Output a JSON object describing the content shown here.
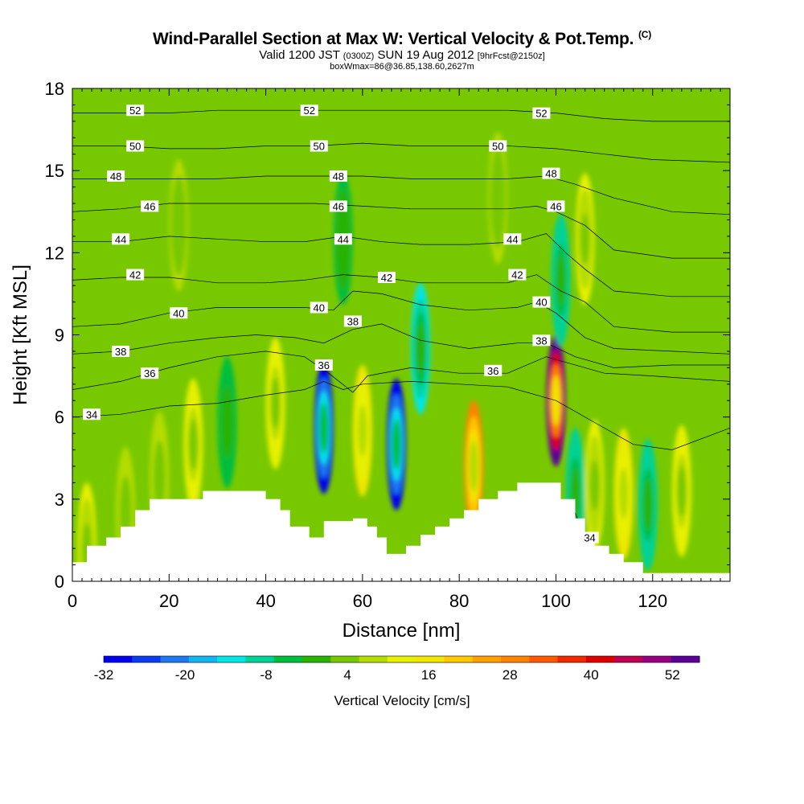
{
  "header": {
    "title": "Wind-Parallel Section at Max W: Vertical Velocity & Pot.Temp.",
    "title_mark": "(C)",
    "valid_prefix": "Valid 1200 JST",
    "valid_utc": "(0300Z)",
    "valid_date": "SUN 19 Aug 2012",
    "forecast": "[9hrFcst@2150z]",
    "box_info": "boxWmax=86@36.85,138.60,2627m"
  },
  "chart_data": {
    "type": "heatmap",
    "xlabel": "Distance [nm]",
    "ylabel": "Height [Kft MSL]",
    "xlim": [
      0,
      136
    ],
    "ylim": [
      0,
      18
    ],
    "x_ticks": [
      0,
      20,
      40,
      60,
      80,
      100,
      120
    ],
    "y_ticks": [
      0,
      3,
      6,
      9,
      12,
      15,
      18
    ],
    "colorbar": {
      "label": "Vertical Velocity [cm/s]",
      "tick_labels": [
        -32,
        -20,
        -8,
        4,
        16,
        28,
        40,
        52
      ],
      "colors": [
        "#0000f0",
        "#0a3cf0",
        "#1e78f0",
        "#14b4f0",
        "#00e6e6",
        "#00d296",
        "#00be3c",
        "#28b400",
        "#78c800",
        "#b4dc00",
        "#e6f000",
        "#f0e600",
        "#ffc800",
        "#ffa000",
        "#ff8200",
        "#ff5a00",
        "#f02800",
        "#dc0000",
        "#be0050",
        "#960082",
        "#5a0096"
      ]
    },
    "background_velocity": 2,
    "velocity_cells": [
      {
        "x": 3,
        "y": 1.2,
        "v": 10
      },
      {
        "x": 11,
        "y": 2.5,
        "v": 8
      },
      {
        "x": 18,
        "y": 3.8,
        "v": 7
      },
      {
        "x": 25,
        "y": 5.0,
        "v": 14
      },
      {
        "x": 32,
        "y": 5.8,
        "v": -6
      },
      {
        "x": 42,
        "y": 6.5,
        "v": 14
      },
      {
        "x": 52,
        "y": 5.6,
        "v": -30
      },
      {
        "x": 60,
        "y": 5.5,
        "v": 18
      },
      {
        "x": 67,
        "y": 5.0,
        "v": -28
      },
      {
        "x": 72,
        "y": 8.5,
        "v": -12
      },
      {
        "x": 83,
        "y": 4.2,
        "v": 28
      },
      {
        "x": 100,
        "y": 6.6,
        "v": 54
      },
      {
        "x": 104,
        "y": 3.2,
        "v": -10
      },
      {
        "x": 108,
        "y": 3.5,
        "v": 12
      },
      {
        "x": 114,
        "y": 3.2,
        "v": 18
      },
      {
        "x": 119,
        "y": 2.8,
        "v": -10
      },
      {
        "x": 126,
        "y": 3.3,
        "v": 14
      },
      {
        "x": 101,
        "y": 11.0,
        "v": -10
      },
      {
        "x": 106,
        "y": 12.5,
        "v": 12
      },
      {
        "x": 56,
        "y": 12.5,
        "v": -4
      },
      {
        "x": 22,
        "y": 13.0,
        "v": 6
      },
      {
        "x": 88,
        "y": 14.0,
        "v": 6
      }
    ],
    "terrain": [
      [
        0,
        0.7
      ],
      [
        3,
        1.3
      ],
      [
        7,
        1.6
      ],
      [
        10,
        2.0
      ],
      [
        13,
        2.6
      ],
      [
        16,
        3.0
      ],
      [
        26,
        3.0
      ],
      [
        27,
        3.3
      ],
      [
        38,
        3.3
      ],
      [
        40,
        3.0
      ],
      [
        43,
        2.6
      ],
      [
        45,
        2.0
      ],
      [
        49,
        1.6
      ],
      [
        52,
        2.2
      ],
      [
        55,
        2.2
      ],
      [
        58,
        2.3
      ],
      [
        61,
        2.0
      ],
      [
        63,
        1.6
      ],
      [
        65,
        1.0
      ],
      [
        69,
        1.3
      ],
      [
        72,
        1.7
      ],
      [
        75,
        2.0
      ],
      [
        78,
        2.3
      ],
      [
        81,
        2.6
      ],
      [
        84,
        3.0
      ],
      [
        88,
        3.3
      ],
      [
        92,
        3.6
      ],
      [
        98,
        3.6
      ],
      [
        101,
        3.0
      ],
      [
        104,
        2.3
      ],
      [
        106,
        1.6
      ],
      [
        108,
        1.3
      ],
      [
        111,
        1.0
      ],
      [
        114,
        0.7
      ],
      [
        118,
        0.3
      ],
      [
        136,
        0.3
      ]
    ],
    "theta_contours": [
      {
        "label": "34",
        "points": [
          [
            0,
            6.0
          ],
          [
            10,
            6.1
          ],
          [
            20,
            6.4
          ],
          [
            30,
            6.5
          ],
          [
            40,
            6.8
          ],
          [
            48,
            7.0
          ],
          [
            52,
            7.3
          ],
          [
            56,
            7.0
          ],
          [
            60,
            7.2
          ],
          [
            70,
            7.3
          ],
          [
            80,
            7.2
          ],
          [
            90,
            7.1
          ],
          [
            100,
            6.6
          ],
          [
            108,
            5.8
          ],
          [
            116,
            5.0
          ],
          [
            124,
            4.8
          ],
          [
            136,
            5.6
          ]
        ],
        "labels": [
          [
            4,
            6.1
          ]
        ]
      },
      {
        "label": "36",
        "points": [
          [
            0,
            7.0
          ],
          [
            10,
            7.3
          ],
          [
            20,
            7.8
          ],
          [
            30,
            8.2
          ],
          [
            40,
            8.4
          ],
          [
            48,
            8.2
          ],
          [
            53,
            7.6
          ],
          [
            58,
            6.9
          ],
          [
            61,
            7.5
          ],
          [
            70,
            7.8
          ],
          [
            80,
            7.6
          ],
          [
            90,
            7.6
          ],
          [
            98,
            8.2
          ],
          [
            102,
            8.0
          ],
          [
            110,
            7.6
          ],
          [
            120,
            7.5
          ],
          [
            136,
            7.3
          ]
        ],
        "labels": [
          [
            16,
            7.6
          ],
          [
            52,
            7.9
          ],
          [
            87,
            7.7
          ]
        ]
      },
      {
        "label": "38",
        "points": [
          [
            0,
            8.3
          ],
          [
            10,
            8.4
          ],
          [
            20,
            8.7
          ],
          [
            30,
            8.9
          ],
          [
            38,
            9.0
          ],
          [
            46,
            8.9
          ],
          [
            52,
            8.7
          ],
          [
            58,
            9.2
          ],
          [
            64,
            9.4
          ],
          [
            72,
            8.8
          ],
          [
            82,
            8.5
          ],
          [
            92,
            8.7
          ],
          [
            98,
            8.7
          ],
          [
            104,
            8.2
          ],
          [
            112,
            7.8
          ],
          [
            124,
            7.9
          ],
          [
            136,
            7.9
          ]
        ],
        "labels": [
          [
            10,
            8.4
          ],
          [
            58,
            9.5
          ],
          [
            97,
            8.8
          ]
        ]
      },
      {
        "label": "40",
        "points": [
          [
            0,
            9.3
          ],
          [
            10,
            9.4
          ],
          [
            20,
            9.8
          ],
          [
            30,
            10.0
          ],
          [
            40,
            10.0
          ],
          [
            48,
            10.0
          ],
          [
            54,
            9.9
          ],
          [
            58,
            10.6
          ],
          [
            64,
            10.5
          ],
          [
            72,
            10.1
          ],
          [
            82,
            9.9
          ],
          [
            92,
            10.0
          ],
          [
            96,
            10.2
          ],
          [
            100,
            9.8
          ],
          [
            106,
            8.9
          ],
          [
            112,
            8.5
          ],
          [
            124,
            8.4
          ],
          [
            136,
            8.3
          ]
        ],
        "labels": [
          [
            22,
            9.8
          ],
          [
            51,
            10.0
          ],
          [
            97,
            10.2
          ]
        ]
      },
      {
        "label": "42",
        "points": [
          [
            0,
            11.0
          ],
          [
            10,
            11.1
          ],
          [
            20,
            11.1
          ],
          [
            30,
            10.9
          ],
          [
            40,
            10.9
          ],
          [
            48,
            11.0
          ],
          [
            56,
            11.2
          ],
          [
            64,
            11.1
          ],
          [
            72,
            10.9
          ],
          [
            82,
            10.9
          ],
          [
            90,
            10.9
          ],
          [
            96,
            11.2
          ],
          [
            101,
            10.6
          ],
          [
            106,
            10.2
          ],
          [
            112,
            9.3
          ],
          [
            124,
            9.1
          ],
          [
            136,
            9.1
          ]
        ],
        "labels": [
          [
            13,
            11.2
          ],
          [
            65,
            11.1
          ],
          [
            92,
            11.2
          ]
        ]
      },
      {
        "label": "44",
        "points": [
          [
            0,
            12.4
          ],
          [
            10,
            12.4
          ],
          [
            20,
            12.6
          ],
          [
            30,
            12.5
          ],
          [
            40,
            12.4
          ],
          [
            48,
            12.4
          ],
          [
            56,
            12.6
          ],
          [
            64,
            12.4
          ],
          [
            72,
            12.3
          ],
          [
            82,
            12.3
          ],
          [
            92,
            12.4
          ],
          [
            98,
            12.7
          ],
          [
            102,
            12.0
          ],
          [
            106,
            11.4
          ],
          [
            112,
            10.6
          ],
          [
            124,
            10.4
          ],
          [
            136,
            10.4
          ]
        ],
        "labels": [
          [
            10,
            12.5
          ],
          [
            56,
            12.5
          ],
          [
            91,
            12.5
          ]
        ]
      },
      {
        "label": "46",
        "points": [
          [
            0,
            13.5
          ],
          [
            10,
            13.6
          ],
          [
            20,
            13.8
          ],
          [
            30,
            13.8
          ],
          [
            40,
            13.8
          ],
          [
            50,
            13.8
          ],
          [
            60,
            13.7
          ],
          [
            70,
            13.6
          ],
          [
            80,
            13.6
          ],
          [
            90,
            13.6
          ],
          [
            96,
            13.7
          ],
          [
            100,
            13.5
          ],
          [
            106,
            13.0
          ],
          [
            112,
            12.1
          ],
          [
            124,
            11.8
          ],
          [
            136,
            11.8
          ]
        ],
        "labels": [
          [
            16,
            13.7
          ],
          [
            55,
            13.7
          ],
          [
            100,
            13.7
          ]
        ]
      },
      {
        "label": "48",
        "points": [
          [
            0,
            14.7
          ],
          [
            10,
            14.7
          ],
          [
            20,
            14.7
          ],
          [
            30,
            14.7
          ],
          [
            40,
            14.8
          ],
          [
            50,
            14.8
          ],
          [
            60,
            14.8
          ],
          [
            70,
            14.7
          ],
          [
            80,
            14.7
          ],
          [
            90,
            14.7
          ],
          [
            98,
            14.8
          ],
          [
            104,
            14.5
          ],
          [
            112,
            14.0
          ],
          [
            124,
            13.5
          ],
          [
            136,
            13.4
          ]
        ],
        "labels": [
          [
            9,
            14.8
          ],
          [
            55,
            14.8
          ],
          [
            99,
            14.9
          ]
        ]
      },
      {
        "label": "50",
        "points": [
          [
            0,
            15.9
          ],
          [
            10,
            15.9
          ],
          [
            20,
            15.8
          ],
          [
            30,
            15.8
          ],
          [
            40,
            15.9
          ],
          [
            50,
            15.9
          ],
          [
            60,
            16.0
          ],
          [
            70,
            15.9
          ],
          [
            80,
            15.9
          ],
          [
            90,
            15.9
          ],
          [
            100,
            15.8
          ],
          [
            110,
            15.6
          ],
          [
            120,
            15.4
          ],
          [
            136,
            15.3
          ]
        ],
        "labels": [
          [
            13,
            15.9
          ],
          [
            51,
            15.9
          ],
          [
            88,
            15.9
          ]
        ]
      },
      {
        "label": "52",
        "points": [
          [
            0,
            17.1
          ],
          [
            10,
            17.1
          ],
          [
            20,
            17.1
          ],
          [
            30,
            17.2
          ],
          [
            40,
            17.2
          ],
          [
            50,
            17.2
          ],
          [
            60,
            17.2
          ],
          [
            70,
            17.2
          ],
          [
            80,
            17.2
          ],
          [
            90,
            17.2
          ],
          [
            100,
            17.1
          ],
          [
            110,
            16.9
          ],
          [
            120,
            16.8
          ],
          [
            136,
            16.8
          ]
        ],
        "labels": [
          [
            13,
            17.2
          ],
          [
            49,
            17.2
          ],
          [
            97,
            17.1
          ]
        ]
      }
    ],
    "extra_contours": [
      {
        "label": "34",
        "points": [
          [
            104,
            2.5
          ],
          [
            106,
            1.5
          ],
          [
            107,
            0.5
          ]
        ],
        "labels": [
          [
            107,
            1.6
          ]
        ]
      }
    ]
  }
}
